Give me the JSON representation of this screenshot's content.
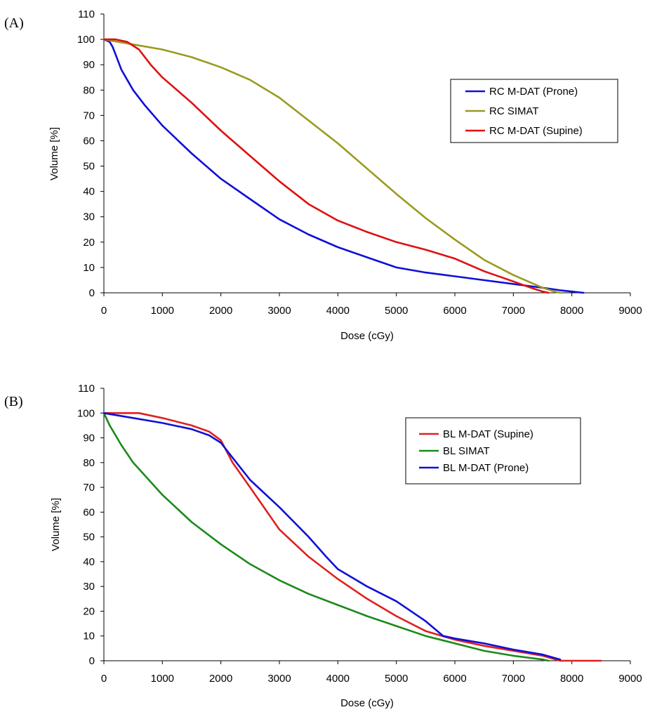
{
  "chart_data": [
    {
      "panel_label": "(A)",
      "type": "line",
      "xlabel": "Dose (cGy)",
      "ylabel": "Volume [%]",
      "xlim": [
        0,
        9000
      ],
      "ylim": [
        0,
        110
      ],
      "xticks": [
        0,
        1000,
        2000,
        3000,
        4000,
        5000,
        6000,
        7000,
        8000,
        9000
      ],
      "yticks": [
        0,
        10,
        20,
        30,
        40,
        50,
        60,
        70,
        80,
        90,
        100,
        110
      ],
      "grid": false,
      "legend_position": "right",
      "series": [
        {
          "name": "RC  M-DAT (Prone)",
          "color": "#1010d8",
          "points": [
            [
              0,
              100
            ],
            [
              100,
              99
            ],
            [
              150,
              97
            ],
            [
              200,
              94
            ],
            [
              300,
              88
            ],
            [
              400,
              84
            ],
            [
              500,
              80
            ],
            [
              700,
              74
            ],
            [
              1000,
              66
            ],
            [
              1500,
              55
            ],
            [
              2000,
              45
            ],
            [
              2500,
              37
            ],
            [
              3000,
              29
            ],
            [
              3500,
              23
            ],
            [
              4000,
              18
            ],
            [
              4500,
              14
            ],
            [
              5000,
              10
            ],
            [
              5500,
              8
            ],
            [
              6000,
              6.5
            ],
            [
              6500,
              5
            ],
            [
              7000,
              3.5
            ],
            [
              7500,
              2
            ],
            [
              7800,
              1
            ],
            [
              8000,
              0.5
            ],
            [
              8200,
              0
            ]
          ]
        },
        {
          "name": "RC SIMAT",
          "color": "#9a9a20",
          "points": [
            [
              0,
              100
            ],
            [
              500,
              98
            ],
            [
              1000,
              96
            ],
            [
              1500,
              93
            ],
            [
              2000,
              89
            ],
            [
              2500,
              84
            ],
            [
              3000,
              77
            ],
            [
              3500,
              68
            ],
            [
              4000,
              59
            ],
            [
              4500,
              49
            ],
            [
              5000,
              39
            ],
            [
              5500,
              29.5
            ],
            [
              6000,
              21
            ],
            [
              6500,
              13
            ],
            [
              7000,
              7
            ],
            [
              7500,
              2
            ],
            [
              7700,
              0.5
            ],
            [
              7800,
              0
            ]
          ]
        },
        {
          "name": "RC M-DAT (Supine)",
          "color": "#e01010",
          "points": [
            [
              0,
              100
            ],
            [
              200,
              100
            ],
            [
              400,
              99
            ],
            [
              600,
              96
            ],
            [
              800,
              90
            ],
            [
              1000,
              85
            ],
            [
              1500,
              75
            ],
            [
              2000,
              64
            ],
            [
              2500,
              54
            ],
            [
              3000,
              44
            ],
            [
              3500,
              35
            ],
            [
              4000,
              28.5
            ],
            [
              4500,
              24
            ],
            [
              5000,
              20
            ],
            [
              5500,
              17
            ],
            [
              6000,
              13.5
            ],
            [
              6500,
              8.5
            ],
            [
              7000,
              4.5
            ],
            [
              7300,
              2
            ],
            [
              7500,
              0.5
            ],
            [
              7600,
              0
            ]
          ]
        }
      ]
    },
    {
      "panel_label": "(B)",
      "type": "line",
      "xlabel": "Dose (cGy)",
      "ylabel": "Volume [%]",
      "xlim": [
        0,
        9000
      ],
      "ylim": [
        0,
        110
      ],
      "xticks": [
        0,
        1000,
        2000,
        3000,
        4000,
        5000,
        6000,
        7000,
        8000,
        9000
      ],
      "yticks": [
        0,
        10,
        20,
        30,
        40,
        50,
        60,
        70,
        80,
        90,
        100,
        110
      ],
      "grid": false,
      "legend_position": "right",
      "series": [
        {
          "name": "BL M-DAT (Supine)",
          "color": "#e02020",
          "points": [
            [
              0,
              100
            ],
            [
              300,
              100
            ],
            [
              600,
              100
            ],
            [
              1000,
              98
            ],
            [
              1500,
              95
            ],
            [
              1800,
              92.5
            ],
            [
              2000,
              89
            ],
            [
              2200,
              80
            ],
            [
              2500,
              70
            ],
            [
              3000,
              53
            ],
            [
              3500,
              42
            ],
            [
              4000,
              33
            ],
            [
              4500,
              25
            ],
            [
              5000,
              18
            ],
            [
              5500,
              12
            ],
            [
              6000,
              8.5
            ],
            [
              6500,
              6
            ],
            [
              7000,
              4
            ],
            [
              7500,
              2
            ],
            [
              7800,
              0
            ],
            [
              8500,
              0
            ]
          ]
        },
        {
          "name": "BL SIMAT",
          "color": "#1a8a1a",
          "points": [
            [
              0,
              100
            ],
            [
              100,
              95
            ],
            [
              300,
              87
            ],
            [
              500,
              80
            ],
            [
              1000,
              67
            ],
            [
              1500,
              56
            ],
            [
              2000,
              47
            ],
            [
              2500,
              39
            ],
            [
              3000,
              32.5
            ],
            [
              3500,
              27
            ],
            [
              4000,
              22.5
            ],
            [
              4500,
              18
            ],
            [
              5000,
              14
            ],
            [
              5500,
              10
            ],
            [
              6000,
              7
            ],
            [
              6500,
              4
            ],
            [
              7000,
              2
            ],
            [
              7500,
              0.5
            ],
            [
              7600,
              0
            ]
          ]
        },
        {
          "name": "BL M-DAT (Prone)",
          "color": "#1010d8",
          "points": [
            [
              0,
              100
            ],
            [
              500,
              98
            ],
            [
              1000,
              96
            ],
            [
              1500,
              93.5
            ],
            [
              1800,
              91
            ],
            [
              2000,
              88
            ],
            [
              2200,
              82
            ],
            [
              2500,
              73
            ],
            [
              3000,
              62
            ],
            [
              3500,
              50
            ],
            [
              3800,
              42
            ],
            [
              4000,
              37
            ],
            [
              4500,
              30
            ],
            [
              5000,
              24
            ],
            [
              5500,
              16
            ],
            [
              5800,
              10
            ],
            [
              6000,
              9
            ],
            [
              6500,
              7
            ],
            [
              7000,
              4.5
            ],
            [
              7500,
              2.5
            ],
            [
              7800,
              0.5
            ]
          ]
        }
      ]
    }
  ]
}
